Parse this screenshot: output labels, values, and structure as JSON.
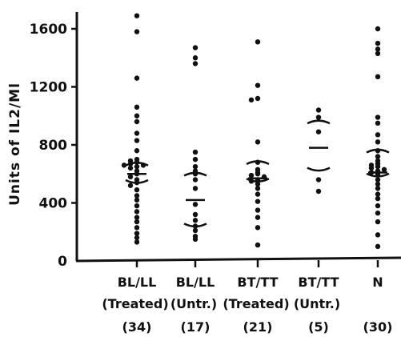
{
  "chart_data": {
    "type": "scatter",
    "title": "",
    "xlabel": "",
    "ylabel": "Units of IL2/Ml",
    "ylim": [
      0,
      1700
    ],
    "yticks": [
      0,
      400,
      800,
      1200,
      1600
    ],
    "ytick_labels": [
      "0",
      "400",
      "800",
      "1200",
      "1600"
    ],
    "grid": false,
    "categories": [
      {
        "line1": "BL/LL",
        "line2": "(Treated)",
        "line3": "(34)"
      },
      {
        "line1": "BL/LL",
        "line2": "(Untr.)",
        "line3": "(17)"
      },
      {
        "line1": "BT/TT",
        "line2": "(Treated)",
        "line3": "(21)"
      },
      {
        "line1": "BT/TT",
        "line2": "(Untr.)",
        "line3": "(5)"
      },
      {
        "line1": "N",
        "line2": "",
        "line3": "(30)"
      }
    ],
    "groups": [
      {
        "mean": 600,
        "upper": 680,
        "lower": 535,
        "values": [
          1690,
          1580,
          1260,
          1060,
          1000,
          960,
          880,
          830,
          760,
          700,
          690,
          680,
          670,
          660,
          660,
          650,
          640,
          620,
          600,
          580,
          560,
          540,
          520,
          490,
          450,
          420,
          380,
          340,
          300,
          270,
          230,
          190,
          160,
          130
        ]
      },
      {
        "mean": 420,
        "upper": 610,
        "lower": 235,
        "values": [
          1470,
          1400,
          1360,
          750,
          700,
          650,
          620,
          600,
          560,
          500,
          390,
          320,
          280,
          240,
          210,
          170,
          150
        ]
      },
      {
        "mean": 570,
        "upper": 690,
        "lower": 545,
        "values": [
          1510,
          1210,
          1120,
          1110,
          820,
          680,
          630,
          610,
          600,
          590,
          580,
          560,
          550,
          530,
          500,
          460,
          410,
          350,
          300,
          230,
          110
        ]
      },
      {
        "mean": 780,
        "upper": 970,
        "lower": 620,
        "values": [
          1040,
          990,
          890,
          560,
          480
        ]
      },
      {
        "mean": 610,
        "upper": 770,
        "lower": 580,
        "values": [
          1600,
          1500,
          1460,
          1430,
          1270,
          990,
          950,
          870,
          820,
          760,
          720,
          690,
          670,
          660,
          650,
          640,
          630,
          620,
          610,
          600,
          560,
          530,
          500,
          460,
          430,
          380,
          330,
          270,
          180,
          100
        ]
      }
    ]
  }
}
